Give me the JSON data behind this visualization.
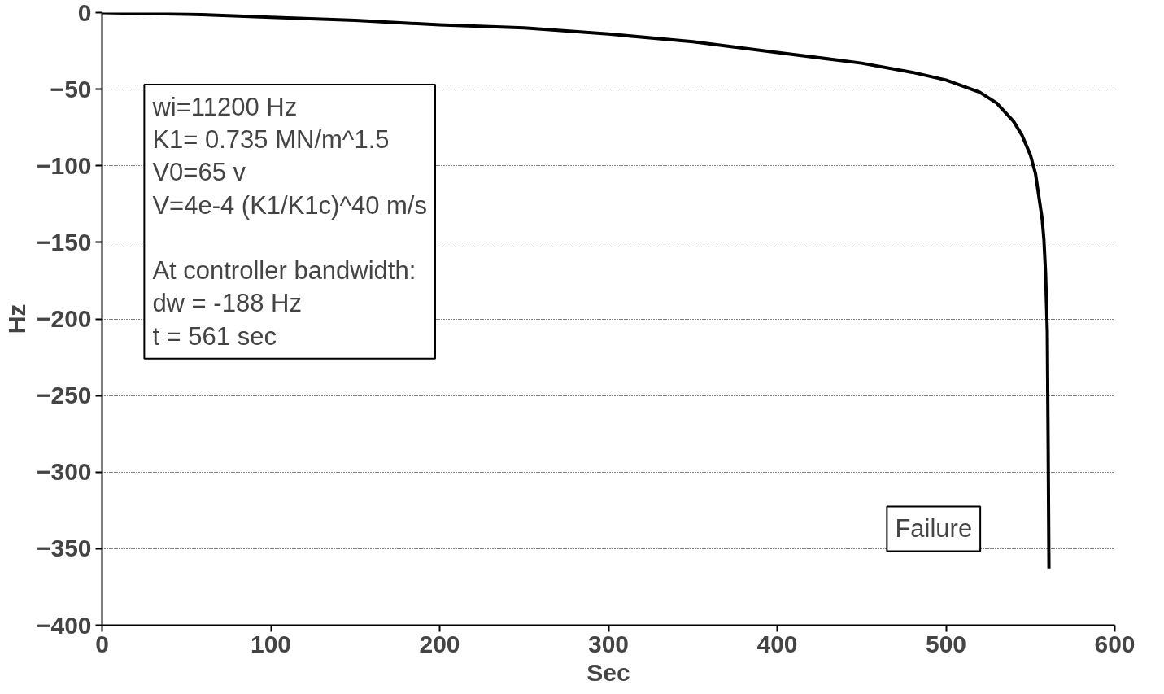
{
  "chart_data": {
    "type": "line",
    "xlabel": "Sec",
    "ylabel": "Hz",
    "x": [
      0,
      50,
      100,
      150,
      200,
      250,
      300,
      350,
      400,
      450,
      480,
      500,
      520,
      530,
      540,
      545,
      550,
      553,
      555,
      557,
      558,
      559,
      560,
      560.5,
      561
    ],
    "series": [
      {
        "color": "#000000",
        "values": [
          0,
          -1,
          -3,
          -5,
          -8,
          -10,
          -14,
          -19,
          -26,
          -33,
          -39,
          -44,
          -52,
          -59,
          -71,
          -80,
          -93,
          -105,
          -120,
          -135,
          -148,
          -170,
          -208,
          -280,
          -363
        ]
      }
    ],
    "xlim": [
      0,
      600
    ],
    "ylim": [
      -400,
      0
    ],
    "xticks": [
      0,
      100,
      200,
      300,
      400,
      500,
      600
    ],
    "yticks": [
      -400,
      -350,
      -300,
      -250,
      -200,
      -150,
      -100,
      -50,
      0
    ],
    "grid": "y",
    "line_style": "solid",
    "marker": "none",
    "annotations": [
      "wi=11200 Hz\nK1= 0.735 MN/m^1.5\nV0=65 v\nV=4e-4 (K1/K1c)^40 m/s\n\nAt controller bandwidth:\n  dw = -188 Hz\n   t = 561 sec",
      "Failure"
    ]
  }
}
